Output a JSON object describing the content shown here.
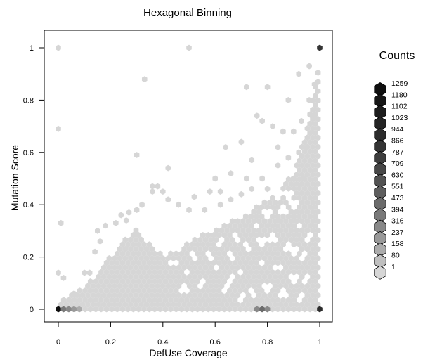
{
  "chart_data": {
    "type": "hexbin",
    "title": "Hexagonal Binning",
    "xlabel": "DefUse Coverage",
    "ylabel": "Mutation Score",
    "xlim": [
      0,
      1
    ],
    "ylim": [
      0,
      1
    ],
    "x_ticks": [
      0,
      0.2,
      0.4,
      0.6,
      0.8,
      1
    ],
    "x_tick_labels": [
      "0",
      "0.2",
      "0.4",
      "0.6",
      "0.8",
      "1"
    ],
    "y_ticks": [
      0,
      0.2,
      0.4,
      0.6,
      0.8,
      1
    ],
    "y_tick_labels": [
      "0",
      "0.2",
      "0.4",
      "0.6",
      "0.8",
      "1"
    ],
    "grid": false,
    "legend": {
      "title": "Counts",
      "position": "right",
      "levels": [
        "1259",
        "1180",
        "1102",
        "1023",
        "944",
        "866",
        "787",
        "709",
        "630",
        "551",
        "473",
        "394",
        "316",
        "237",
        "158",
        "80",
        "1"
      ],
      "colors": [
        "#0f0f0f",
        "#161616",
        "#1d1d1d",
        "#242424",
        "#2c2c2c",
        "#343434",
        "#3d3d3d",
        "#474747",
        "#525252",
        "#5e5e5e",
        "#6b6b6b",
        "#797979",
        "#888888",
        "#999999",
        "#ababab",
        "#bfbfbf",
        "#d6d6d6"
      ]
    },
    "dense_region": {
      "description_points": [
        [
          0,
          0.02
        ],
        [
          0.05,
          0.05
        ],
        [
          0.1,
          0.08
        ],
        [
          0.15,
          0.13
        ],
        [
          0.2,
          0.2
        ],
        [
          0.25,
          0.27
        ],
        [
          0.3,
          0.3
        ],
        [
          0.35,
          0.25
        ],
        [
          0.4,
          0.2
        ],
        [
          0.45,
          0.22
        ],
        [
          0.5,
          0.25
        ],
        [
          0.55,
          0.28
        ],
        [
          0.6,
          0.3
        ],
        [
          0.65,
          0.33
        ],
        [
          0.7,
          0.35
        ],
        [
          0.75,
          0.38
        ],
        [
          0.8,
          0.42
        ],
        [
          0.85,
          0.46
        ],
        [
          0.9,
          0.52
        ],
        [
          0.95,
          0.68
        ],
        [
          1.0,
          0.95
        ]
      ],
      "color": "#d6d6d6"
    },
    "scattered_points": [
      [
        0.0,
        1.0
      ],
      [
        0.5,
        1.0
      ],
      [
        0.0,
        0.69
      ],
      [
        0.33,
        0.88
      ],
      [
        0.3,
        0.59
      ],
      [
        0.42,
        0.54
      ],
      [
        0.72,
        0.85
      ],
      [
        0.8,
        0.85
      ],
      [
        0.88,
        0.8
      ],
      [
        0.92,
        0.9
      ],
      [
        0.96,
        0.93
      ],
      [
        0.76,
        0.74
      ],
      [
        0.78,
        0.72
      ],
      [
        0.82,
        0.7
      ],
      [
        0.86,
        0.68
      ],
      [
        0.9,
        0.68
      ],
      [
        0.7,
        0.64
      ],
      [
        0.64,
        0.62
      ],
      [
        0.84,
        0.62
      ],
      [
        0.74,
        0.57
      ],
      [
        0.84,
        0.55
      ],
      [
        0.88,
        0.58
      ],
      [
        0.92,
        0.6
      ],
      [
        0.95,
        0.62
      ],
      [
        0.6,
        0.5
      ],
      [
        0.66,
        0.52
      ],
      [
        0.72,
        0.5
      ],
      [
        0.78,
        0.5
      ],
      [
        0.52,
        0.43
      ],
      [
        0.58,
        0.45
      ],
      [
        0.62,
        0.45
      ],
      [
        0.36,
        0.47
      ],
      [
        0.38,
        0.47
      ],
      [
        0.36,
        0.45
      ],
      [
        0.4,
        0.45
      ],
      [
        0.42,
        0.42
      ],
      [
        0.46,
        0.4
      ],
      [
        0.5,
        0.38
      ],
      [
        0.32,
        0.4
      ],
      [
        0.3,
        0.38
      ],
      [
        0.01,
        0.33
      ],
      [
        0.02,
        0.12
      ],
      [
        0.0,
        0.14
      ],
      [
        0.06,
        0.06
      ],
      [
        0.1,
        0.14
      ],
      [
        0.12,
        0.14
      ],
      [
        0.14,
        0.22
      ],
      [
        0.16,
        0.26
      ],
      [
        0.15,
        0.3
      ],
      [
        0.18,
        0.32
      ],
      [
        0.22,
        0.33
      ],
      [
        0.24,
        0.36
      ],
      [
        0.27,
        0.37
      ],
      [
        0.26,
        0.34
      ],
      [
        0.56,
        0.38
      ],
      [
        0.62,
        0.4
      ],
      [
        0.66,
        0.42
      ],
      [
        0.7,
        0.44
      ],
      [
        0.74,
        0.46
      ],
      [
        0.8,
        0.46
      ],
      [
        0.96,
        0.8
      ],
      [
        0.98,
        0.86
      ],
      [
        0.97,
        0.74
      ],
      [
        0.93,
        0.72
      ],
      [
        0.9,
        0.5
      ],
      [
        0.94,
        0.5
      ]
    ],
    "hole_points": [
      [
        0.44,
        0.18
      ],
      [
        0.5,
        0.14
      ],
      [
        0.55,
        0.1
      ],
      [
        0.6,
        0.16
      ],
      [
        0.64,
        0.08
      ],
      [
        0.66,
        0.2
      ],
      [
        0.7,
        0.14
      ],
      [
        0.74,
        0.06
      ],
      [
        0.72,
        0.24
      ],
      [
        0.78,
        0.18
      ],
      [
        0.8,
        0.08
      ],
      [
        0.82,
        0.28
      ],
      [
        0.84,
        0.16
      ],
      [
        0.86,
        0.06
      ],
      [
        0.88,
        0.24
      ],
      [
        0.9,
        0.12
      ],
      [
        0.92,
        0.32
      ],
      [
        0.93,
        0.04
      ],
      [
        0.94,
        0.2
      ],
      [
        0.96,
        0.28
      ],
      [
        0.76,
        0.32
      ],
      [
        0.8,
        0.36
      ],
      [
        0.86,
        0.38
      ],
      [
        0.9,
        0.4
      ],
      [
        0.68,
        0.28
      ],
      [
        0.62,
        0.26
      ],
      [
        0.58,
        0.2
      ],
      [
        0.48,
        0.08
      ],
      [
        0.52,
        0.2
      ],
      [
        0.7,
        0.04
      ],
      [
        0.84,
        0.44
      ],
      [
        0.88,
        0.44
      ],
      [
        0.78,
        0.26
      ],
      [
        0.66,
        0.12
      ],
      [
        0.9,
        0.22
      ],
      [
        0.95,
        0.12
      ]
    ],
    "dark_points": [
      [
        0.0,
        0.0,
        0
      ],
      [
        0.02,
        0.0,
        11
      ],
      [
        0.04,
        0.0,
        12
      ],
      [
        0.06,
        0.0,
        13
      ],
      [
        0.08,
        0.0,
        14
      ],
      [
        0.76,
        0.0,
        12
      ],
      [
        0.78,
        0.0,
        10
      ],
      [
        0.8,
        0.0,
        12
      ],
      [
        1.0,
        0.0,
        4
      ],
      [
        1.0,
        1.0,
        5
      ]
    ]
  }
}
